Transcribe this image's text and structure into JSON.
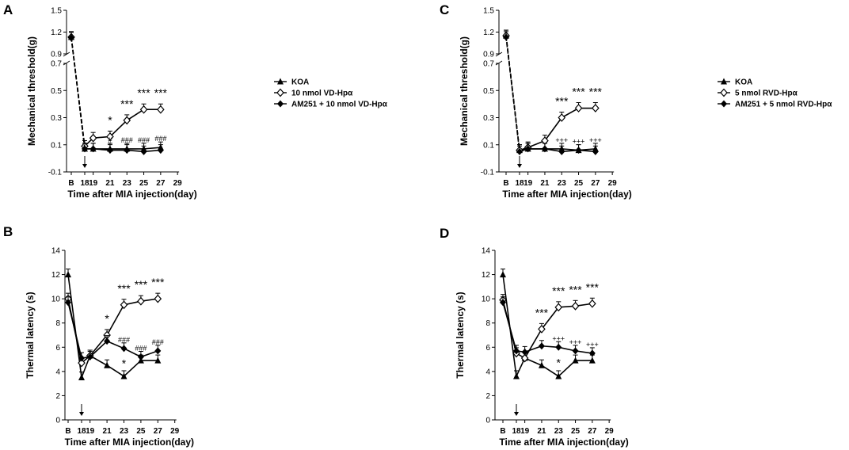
{
  "chart_data": [
    {
      "panel": "A",
      "type": "line",
      "ylabel": "Mechanical threshold(g)",
      "xlabel": "Time after MIA injection(day)",
      "x_ticks": [
        "B",
        "18",
        "19",
        "21",
        "23",
        "25",
        "27",
        "29"
      ],
      "broken_axis": true,
      "ylim_upper": [
        0.9,
        1.5
      ],
      "y_ticks_upper": [
        "0.9",
        "1.2",
        "1.5"
      ],
      "ylim_lower": [
        -0.1,
        0.7
      ],
      "y_ticks_lower": [
        "-0.1",
        "0.1",
        "0.3",
        "0.5",
        "0.7"
      ],
      "arrow_at": "18",
      "series": [
        {
          "name": "KOA",
          "marker": "triangle",
          "x": [
            "B",
            "18",
            "19",
            "21",
            "23",
            "25",
            "27"
          ],
          "values": [
            1.13,
            0.07,
            0.07,
            0.07,
            0.07,
            0.07,
            0.08
          ]
        },
        {
          "name": "10 nmol VD-Hpα",
          "marker": "open-diamond",
          "x": [
            "B",
            "18",
            "19",
            "21",
            "23",
            "25",
            "27"
          ],
          "values": [
            1.13,
            0.09,
            0.15,
            0.16,
            0.28,
            0.36,
            0.36
          ]
        },
        {
          "name": "AM251 + 10 nmol VD-Hpα",
          "marker": "filled-diamond",
          "x": [
            "B",
            "18",
            "19",
            "21",
            "23",
            "25",
            "27"
          ],
          "values": [
            1.12,
            0.07,
            0.07,
            0.06,
            0.06,
            0.05,
            0.06
          ]
        }
      ],
      "annotations": [
        {
          "x": "21",
          "text": "*"
        },
        {
          "x": "23",
          "text": "***"
        },
        {
          "x": "25",
          "text": "***"
        },
        {
          "x": "27",
          "text": "***"
        },
        {
          "x": "21",
          "text": "#"
        },
        {
          "x": "23",
          "text": "###"
        },
        {
          "x": "25",
          "text": "###"
        },
        {
          "x": "27",
          "text": "###"
        }
      ]
    },
    {
      "panel": "C",
      "type": "line",
      "ylabel": "Mechanical threshold(g)",
      "xlabel": "Time after MIA injection(day)",
      "x_ticks": [
        "B",
        "18",
        "19",
        "21",
        "23",
        "25",
        "27",
        "29"
      ],
      "broken_axis": true,
      "ylim_upper": [
        0.9,
        1.5
      ],
      "y_ticks_upper": [
        "0.9",
        "1.2",
        "1.5"
      ],
      "ylim_lower": [
        -0.1,
        0.7
      ],
      "y_ticks_lower": [
        "-0.1",
        "0.1",
        "0.3",
        "0.5",
        "0.7"
      ],
      "arrow_at": "18",
      "series": [
        {
          "name": "KOA",
          "marker": "triangle",
          "x": [
            "B",
            "18",
            "19",
            "21",
            "23",
            "25",
            "27"
          ],
          "values": [
            1.15,
            0.06,
            0.07,
            0.07,
            0.07,
            0.06,
            0.07
          ]
        },
        {
          "name": "5 nmol RVD-Hpα",
          "marker": "open-diamond",
          "x": [
            "B",
            "18",
            "19",
            "21",
            "23",
            "25",
            "27"
          ],
          "values": [
            1.15,
            0.06,
            0.08,
            0.13,
            0.3,
            0.37,
            0.37
          ]
        },
        {
          "name": "AM251 + 5 nmol RVD-Hpα",
          "marker": "filled-diamond",
          "x": [
            "B",
            "18",
            "19",
            "21",
            "23",
            "25",
            "27"
          ],
          "values": [
            1.13,
            0.05,
            0.07,
            0.07,
            0.05,
            0.06,
            0.05
          ]
        }
      ],
      "annotations": [
        {
          "x": "23",
          "text": "***"
        },
        {
          "x": "25",
          "text": "***"
        },
        {
          "x": "27",
          "text": "***"
        },
        {
          "x": "23",
          "text": "+++"
        },
        {
          "x": "25",
          "text": "+++"
        },
        {
          "x": "27",
          "text": "+++"
        }
      ]
    },
    {
      "panel": "B",
      "type": "line",
      "ylabel": "Thermal latency (s)",
      "xlabel": "Time after MIA injection(day)",
      "x_ticks": [
        "B",
        "18",
        "19",
        "21",
        "23",
        "25",
        "27",
        "29"
      ],
      "ylim": [
        0,
        14
      ],
      "y_ticks": [
        "0",
        "2",
        "4",
        "6",
        "8",
        "10",
        "12",
        "14"
      ],
      "arrow_at": "18",
      "series": [
        {
          "name": "KOA",
          "marker": "triangle",
          "x": [
            "B",
            "18",
            "19",
            "21",
            "23",
            "25",
            "27"
          ],
          "values": [
            12.0,
            3.5,
            5.3,
            4.5,
            3.6,
            4.9,
            4.9
          ]
        },
        {
          "name": "VD-Hpα",
          "marker": "open-diamond",
          "x": [
            "B",
            "18",
            "19",
            "21",
            "23",
            "25",
            "27"
          ],
          "values": [
            10.0,
            4.7,
            5.3,
            7.0,
            9.5,
            9.8,
            10.0
          ]
        },
        {
          "name": "AM251 + VD-Hpα",
          "marker": "filled-diamond",
          "x": [
            "B",
            "18",
            "19",
            "21",
            "23",
            "25",
            "27"
          ],
          "values": [
            9.7,
            5.1,
            5.2,
            6.5,
            5.9,
            5.2,
            5.7
          ]
        }
      ],
      "annotations": [
        {
          "x": "21",
          "text": "*"
        },
        {
          "x": "23",
          "text": "***"
        },
        {
          "x": "25",
          "text": "***"
        },
        {
          "x": "27",
          "text": "***"
        },
        {
          "x": "23",
          "text": "###"
        },
        {
          "x": "25",
          "text": "###"
        },
        {
          "x": "27",
          "text": "###"
        },
        {
          "x": "23",
          "text": "*"
        }
      ]
    },
    {
      "panel": "D",
      "type": "line",
      "ylabel": "Thermal latency (s)",
      "xlabel": "Time after MIA injection(day)",
      "x_ticks": [
        "B",
        "18",
        "19",
        "21",
        "23",
        "25",
        "27",
        "29"
      ],
      "ylim": [
        0,
        14
      ],
      "y_ticks": [
        "0",
        "2",
        "4",
        "6",
        "8",
        "10",
        "12",
        "14"
      ],
      "arrow_at": "18",
      "series": [
        {
          "name": "KOA",
          "marker": "triangle",
          "x": [
            "B",
            "18",
            "19",
            "21",
            "23",
            "25",
            "27"
          ],
          "values": [
            12.0,
            3.6,
            5.1,
            4.5,
            3.6,
            4.9,
            4.9
          ]
        },
        {
          "name": "RVD-Hpα",
          "marker": "open-diamond",
          "x": [
            "B",
            "18",
            "19",
            "21",
            "23",
            "25",
            "27"
          ],
          "values": [
            9.9,
            5.5,
            5.1,
            7.5,
            9.3,
            9.4,
            9.6
          ]
        },
        {
          "name": "AM251 + RVD-Hpα",
          "marker": "filled-diamond",
          "x": [
            "B",
            "18",
            "19",
            "21",
            "23",
            "25",
            "27"
          ],
          "values": [
            9.7,
            5.7,
            5.6,
            6.1,
            6.0,
            5.7,
            5.5
          ]
        }
      ],
      "annotations": [
        {
          "x": "21",
          "text": "***"
        },
        {
          "x": "23",
          "text": "***"
        },
        {
          "x": "25",
          "text": "***"
        },
        {
          "x": "27",
          "text": "***"
        },
        {
          "x": "23",
          "text": "+++"
        },
        {
          "x": "25",
          "text": "+++"
        },
        {
          "x": "27",
          "text": "+++"
        },
        {
          "x": "23",
          "text": "*"
        }
      ]
    }
  ]
}
